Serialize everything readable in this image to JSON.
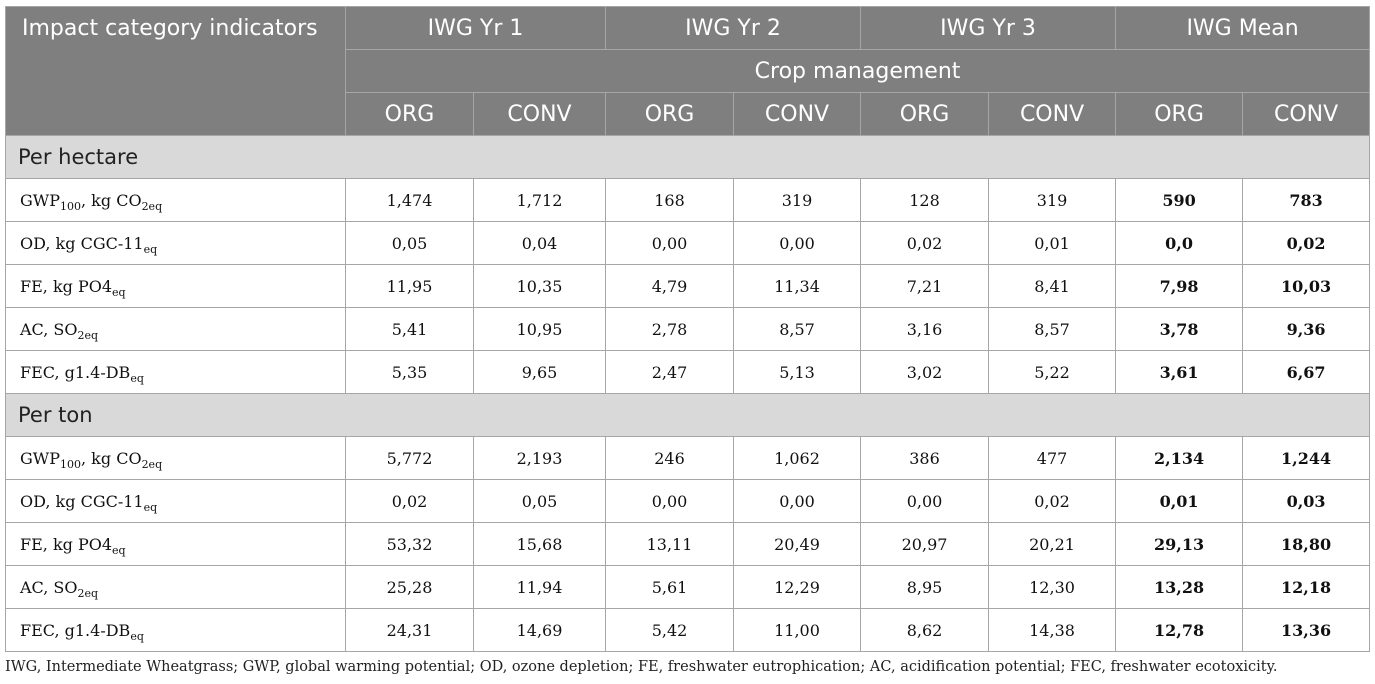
{
  "header": {
    "corner": "Impact category indicators",
    "groups": [
      "IWG Yr 1",
      "IWG Yr 2",
      "IWG Yr 3",
      "IWG Mean"
    ],
    "crop_management": "Crop management",
    "subcols": [
      "ORG",
      "CONV",
      "ORG",
      "CONV",
      "ORG",
      "CONV",
      "ORG",
      "CONV"
    ]
  },
  "sections": [
    {
      "label": "Per hectare",
      "rows": [
        {
          "ind": {
            "pre": "GWP",
            "sub1": "100",
            "mid": ", kg CO",
            "sub2": "2eq"
          },
          "values": [
            "1,474",
            "1,712",
            "168",
            "319",
            "128",
            "319",
            "590",
            "783"
          ]
        },
        {
          "ind": {
            "pre": "OD, kg CGC-11",
            "sub1": "eq",
            "mid": "",
            "sub2": ""
          },
          "values": [
            "0,05",
            "0,04",
            "0,00",
            "0,00",
            "0,02",
            "0,01",
            "0,0",
            "0,02"
          ]
        },
        {
          "ind": {
            "pre": "FE, kg PO4",
            "sub1": "eq",
            "mid": "",
            "sub2": ""
          },
          "values": [
            "11,95",
            "10,35",
            "4,79",
            "11,34",
            "7,21",
            "8,41",
            "7,98",
            "10,03"
          ]
        },
        {
          "ind": {
            "pre": "AC, SO",
            "sub1": "2eq",
            "mid": "",
            "sub2": ""
          },
          "values": [
            "5,41",
            "10,95",
            "2,78",
            "8,57",
            "3,16",
            "8,57",
            "3,78",
            "9,36"
          ]
        },
        {
          "ind": {
            "pre": "FEC, g1.4-DB",
            "sub1": "eq",
            "mid": "",
            "sub2": ""
          },
          "values": [
            "5,35",
            "9,65",
            "2,47",
            "5,13",
            "3,02",
            "5,22",
            "3,61",
            "6,67"
          ]
        }
      ]
    },
    {
      "label": "Per ton",
      "rows": [
        {
          "ind": {
            "pre": "GWP",
            "sub1": "100",
            "mid": ", kg CO",
            "sub2": "2eq"
          },
          "values": [
            "5,772",
            "2,193",
            "246",
            "1,062",
            "386",
            "477",
            "2,134",
            "1,244"
          ]
        },
        {
          "ind": {
            "pre": "OD, kg CGC-11",
            "sub1": "eq",
            "mid": "",
            "sub2": ""
          },
          "values": [
            "0,02",
            "0,05",
            "0,00",
            "0,00",
            "0,00",
            "0,02",
            "0,01",
            "0,03"
          ]
        },
        {
          "ind": {
            "pre": "FE, kg PO4",
            "sub1": "eq",
            "mid": "",
            "sub2": ""
          },
          "values": [
            "53,32",
            "15,68",
            "13,11",
            "20,49",
            "20,97",
            "20,21",
            "29,13",
            "18,80"
          ]
        },
        {
          "ind": {
            "pre": "AC, SO",
            "sub1": "2eq",
            "mid": "",
            "sub2": ""
          },
          "values": [
            "25,28",
            "11,94",
            "5,61",
            "12,29",
            "8,95",
            "12,30",
            "13,28",
            "12,18"
          ]
        },
        {
          "ind": {
            "pre": "FEC, g1.4-DB",
            "sub1": "eq",
            "mid": "",
            "sub2": ""
          },
          "values": [
            "24,31",
            "14,69",
            "5,42",
            "11,00",
            "8,62",
            "14,38",
            "12,78",
            "13,36"
          ]
        }
      ]
    }
  ],
  "footnote": "IWG, Intermediate Wheatgrass; GWP, global warming potential; OD, ozone depletion; FE, freshwater eutrophication; AC, acidification potential; FEC, freshwater ecotoxicity."
}
